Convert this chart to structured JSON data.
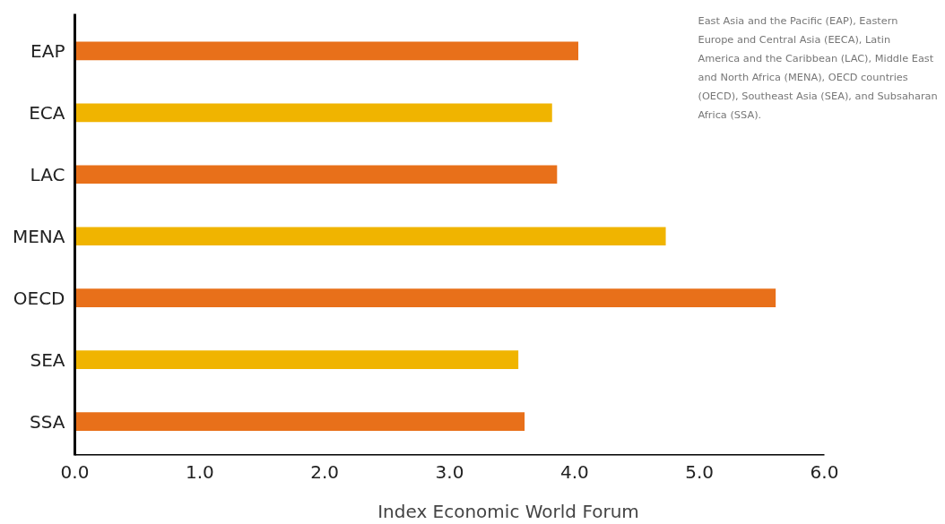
{
  "chart_data": {
    "type": "bar",
    "orientation": "horizontal",
    "xlabel": "Index Economic World Forum",
    "categories": [
      "EAP",
      "ECA",
      "LAC",
      "MENA",
      "OECD",
      "SEA",
      "SSA"
    ],
    "values": [
      4.03,
      3.82,
      3.86,
      4.73,
      5.61,
      3.55,
      3.6
    ],
    "colors": [
      "#e8701a",
      "#f0b400",
      "#e8701a",
      "#f0b400",
      "#e8701a",
      "#f0b400",
      "#e8701a"
    ],
    "xlim": [
      0,
      6
    ],
    "xticks": [
      {
        "value": 0,
        "label": "0.0"
      },
      {
        "value": 1,
        "label": "1.0"
      },
      {
        "value": 2,
        "label": "2.0"
      },
      {
        "value": 3,
        "label": "3.0"
      },
      {
        "value": 4,
        "label": "4.0"
      },
      {
        "value": 5,
        "label": "5.0"
      },
      {
        "value": 6,
        "label": "6.0"
      }
    ],
    "grid": false,
    "annotations": [
      "East Asia and the Pacific (EAP), Eastern Europe and Central Asia (EECA), Latin America and the Caribbean (LAC), Middle East and North Africa (MENA), OECD countries (OECD), Southeast Asia (SEA), and Subsaharan Africa (SSA)."
    ]
  }
}
